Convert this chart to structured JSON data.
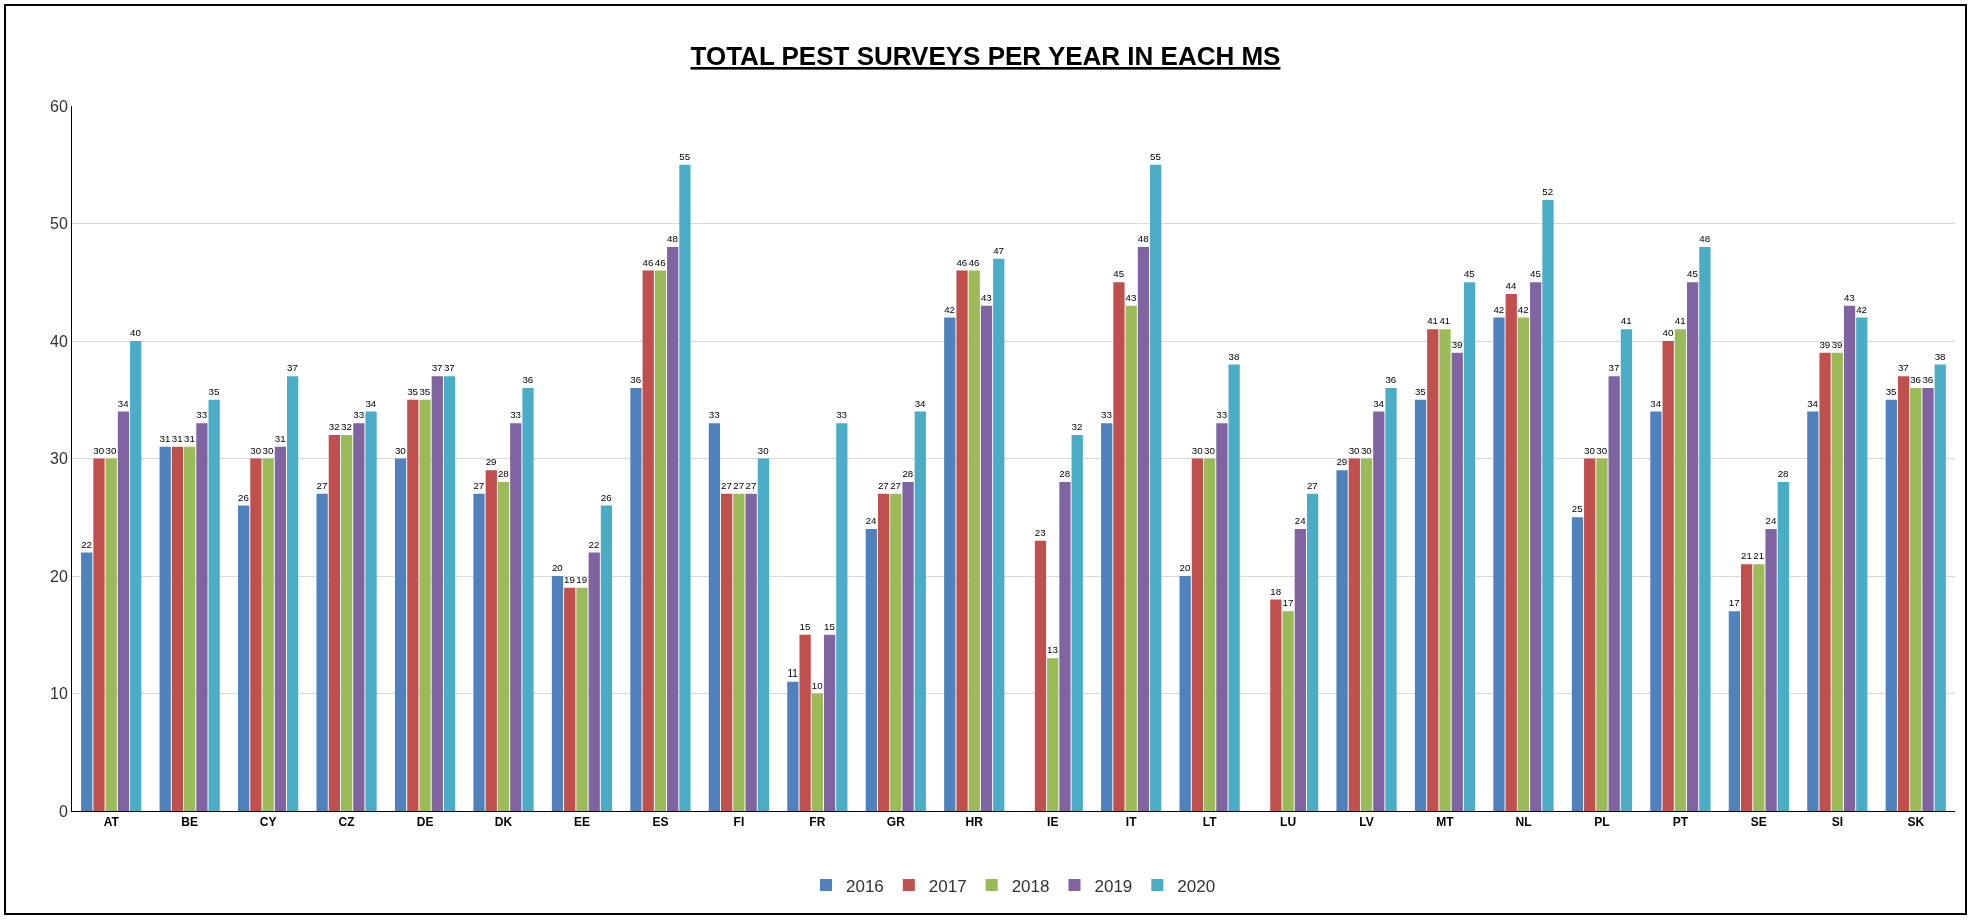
{
  "chart_data": {
    "type": "bar",
    "title": "TOTAL PEST SURVEYS PER YEAR IN EACH MS",
    "categories": [
      "AT",
      "BE",
      "CY",
      "CZ",
      "DE",
      "DK",
      "EE",
      "ES",
      "FI",
      "FR",
      "GR",
      "HR",
      "IE",
      "IT",
      "LT",
      "LU",
      "LV",
      "MT",
      "NL",
      "PL",
      "PT",
      "SE",
      "SI",
      "SK"
    ],
    "series": [
      {
        "name": "2016",
        "color": "#4f81bd",
        "values": [
          22,
          31,
          26,
          27,
          30,
          27,
          20,
          36,
          33,
          11,
          24,
          42,
          null,
          33,
          20,
          null,
          29,
          35,
          42,
          25,
          34,
          17,
          34,
          35
        ]
      },
      {
        "name": "2017",
        "color": "#c0504d",
        "values": [
          30,
          31,
          30,
          32,
          35,
          29,
          19,
          46,
          27,
          15,
          27,
          46,
          23,
          45,
          30,
          18,
          30,
          41,
          44,
          30,
          40,
          21,
          39,
          37
        ]
      },
      {
        "name": "2018",
        "color": "#9bbb59",
        "values": [
          30,
          31,
          30,
          32,
          35,
          28,
          19,
          46,
          27,
          10,
          27,
          46,
          13,
          43,
          30,
          17,
          30,
          41,
          42,
          30,
          41,
          21,
          39,
          36
        ]
      },
      {
        "name": "2019",
        "color": "#8064a2",
        "values": [
          34,
          33,
          31,
          33,
          37,
          33,
          22,
          48,
          27,
          15,
          28,
          43,
          28,
          48,
          33,
          24,
          34,
          39,
          45,
          37,
          45,
          24,
          43,
          36
        ]
      },
      {
        "name": "2020",
        "color": "#4bacc6",
        "values": [
          40,
          35,
          37,
          34,
          37,
          36,
          26,
          55,
          30,
          33,
          34,
          47,
          32,
          55,
          38,
          27,
          36,
          45,
          52,
          41,
          48,
          28,
          42,
          38
        ]
      }
    ],
    "ylim": [
      0,
      60
    ],
    "yticks": [
      0,
      10,
      20,
      30,
      40,
      50,
      60
    ],
    "grid": "y",
    "legend": "bottom",
    "data_labels": true
  }
}
